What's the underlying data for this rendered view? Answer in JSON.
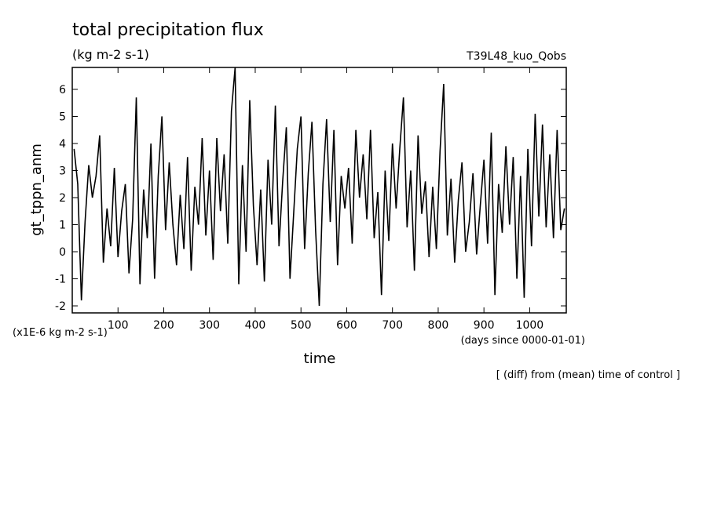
{
  "chart_data": {
    "type": "line",
    "title": "total precipitation flux",
    "subtitle": "(kg m-2 s-1)",
    "run_label": "T39L48_kuo_Qobs",
    "y_label": "gt_tppn_anm",
    "y_scale_label": "(x1E-6 kg m-2 s-1)",
    "x_label": "time",
    "x_units_label": "(days since 0000-01-01)",
    "note": "[ (diff) from (mean) time of control ]",
    "color": "#000000",
    "xlim": [
      0,
      1080
    ],
    "ylim": [
      -2.26,
      6.81
    ],
    "xticks": [
      100,
      200,
      300,
      400,
      500,
      600,
      700,
      800,
      900,
      1000
    ],
    "yticks": [
      -2,
      -1,
      0,
      1,
      2,
      3,
      4,
      5,
      6
    ],
    "x": [
      4,
      12,
      20,
      28,
      36,
      44,
      52,
      60,
      68,
      76,
      84,
      92,
      100,
      108,
      116,
      124,
      132,
      140,
      148,
      156,
      164,
      172,
      180,
      188,
      196,
      204,
      212,
      220,
      228,
      236,
      244,
      252,
      260,
      268,
      276,
      284,
      292,
      300,
      308,
      316,
      324,
      332,
      340,
      348,
      356,
      364,
      372,
      380,
      388,
      396,
      404,
      412,
      420,
      428,
      436,
      444,
      452,
      460,
      468,
      476,
      484,
      492,
      500,
      508,
      516,
      524,
      532,
      540,
      548,
      556,
      564,
      572,
      580,
      588,
      596,
      604,
      612,
      620,
      628,
      636,
      644,
      652,
      660,
      668,
      676,
      684,
      692,
      700,
      708,
      716,
      724,
      732,
      740,
      748,
      756,
      764,
      772,
      780,
      788,
      796,
      804,
      812,
      820,
      828,
      836,
      844,
      852,
      860,
      868,
      876,
      884,
      892,
      900,
      908,
      916,
      924,
      932,
      940,
      948,
      956,
      964,
      972,
      980,
      988,
      996,
      1004,
      1012,
      1020,
      1028,
      1036,
      1044,
      1052,
      1060,
      1068,
      1076
    ],
    "values": [
      3.8,
      2.5,
      -1.8,
      1.1,
      3.2,
      2.0,
      2.8,
      4.3,
      -0.4,
      1.6,
      0.2,
      3.1,
      -0.2,
      1.5,
      2.5,
      -0.8,
      1.2,
      5.7,
      -1.2,
      2.3,
      0.5,
      4.0,
      -1.0,
      2.8,
      5.0,
      0.8,
      3.3,
      1.0,
      -0.5,
      2.1,
      0.1,
      3.5,
      -0.7,
      2.4,
      1.0,
      4.2,
      0.6,
      3.0,
      -0.3,
      4.2,
      1.5,
      3.6,
      0.3,
      5.2,
      6.8,
      -1.2,
      3.2,
      0.0,
      5.6,
      1.7,
      -0.5,
      2.3,
      -1.1,
      3.4,
      1.0,
      5.4,
      0.2,
      2.6,
      4.6,
      -1.0,
      1.4,
      3.8,
      5.0,
      0.1,
      2.9,
      4.8,
      0.8,
      -2.0,
      2.5,
      4.9,
      1.1,
      4.5,
      -0.5,
      2.8,
      1.6,
      3.1,
      0.3,
      4.5,
      2.0,
      3.6,
      1.2,
      4.5,
      0.5,
      2.2,
      -1.6,
      3.0,
      0.4,
      4.0,
      1.6,
      3.8,
      5.7,
      0.9,
      3.0,
      -0.7,
      4.3,
      1.4,
      2.6,
      -0.2,
      2.4,
      0.1,
      3.7,
      6.2,
      0.6,
      2.7,
      -0.4,
      1.9,
      3.3,
      0.0,
      1.1,
      2.9,
      -0.1,
      1.7,
      3.4,
      0.3,
      4.4,
      -1.6,
      2.5,
      0.7,
      3.9,
      1.0,
      3.5,
      -1.0,
      2.8,
      -1.7,
      3.8,
      0.2,
      5.1,
      1.3,
      4.7,
      0.9,
      3.6,
      0.5,
      4.5,
      0.8,
      1.6
    ]
  }
}
